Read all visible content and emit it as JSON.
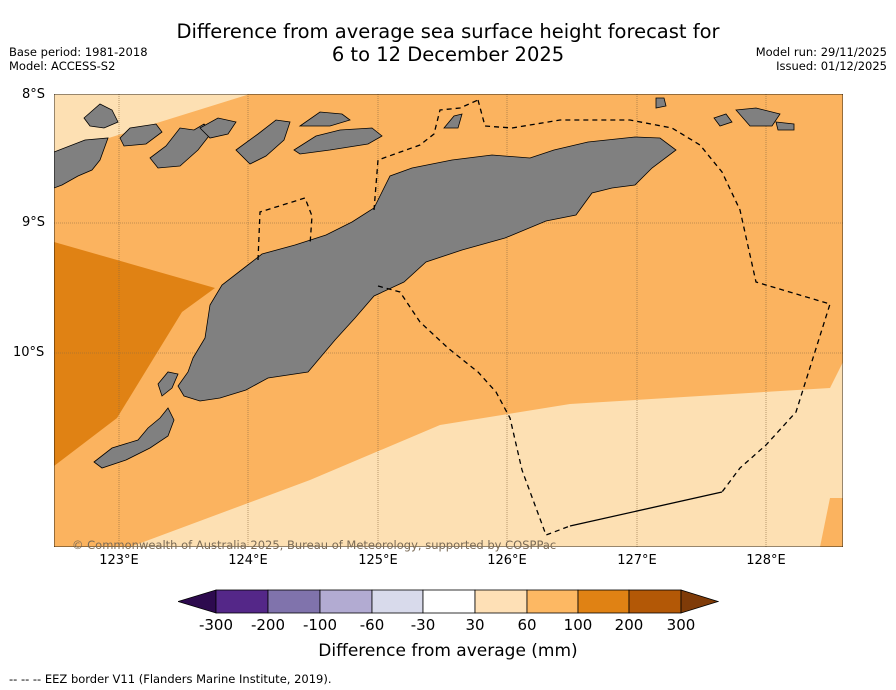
{
  "header": {
    "title_line1": "Difference from average sea surface height forecast for",
    "title_line2": "6 to 12 December 2025",
    "base_period": "Base period: 1981-2018",
    "model": "Model: ACCESS-S2",
    "model_run": "Model run: 29/11/2025",
    "issued": "Issued: 01/12/2025"
  },
  "map": {
    "lat_labels": [
      "8°S",
      "9°S",
      "10°S"
    ],
    "lon_labels": [
      "123°E",
      "124°E",
      "125°E",
      "126°E",
      "127°E",
      "128°E"
    ],
    "copyright": "© Commonwealth of Australia 2025, Bureau of Meteorology, supported by COSPPac"
  },
  "colorbar": {
    "title": "Difference from average (mm)",
    "labels": [
      "-300",
      "-200",
      "-100",
      "-60",
      "-30",
      "30",
      "60",
      "100",
      "200",
      "300"
    ],
    "colors": [
      "#2d0a4e",
      "#542788",
      "#8073ac",
      "#b2abd2",
      "#d8daeb",
      "#ffffff",
      "#fee0b6",
      "#fdb863",
      "#e08214",
      "#b35806",
      "#7f3b08"
    ]
  },
  "legend": {
    "eez_marker": "--  --  --",
    "eez_text": "EEZ border V11 (Flanders Marine Institute, 2019)."
  }
}
